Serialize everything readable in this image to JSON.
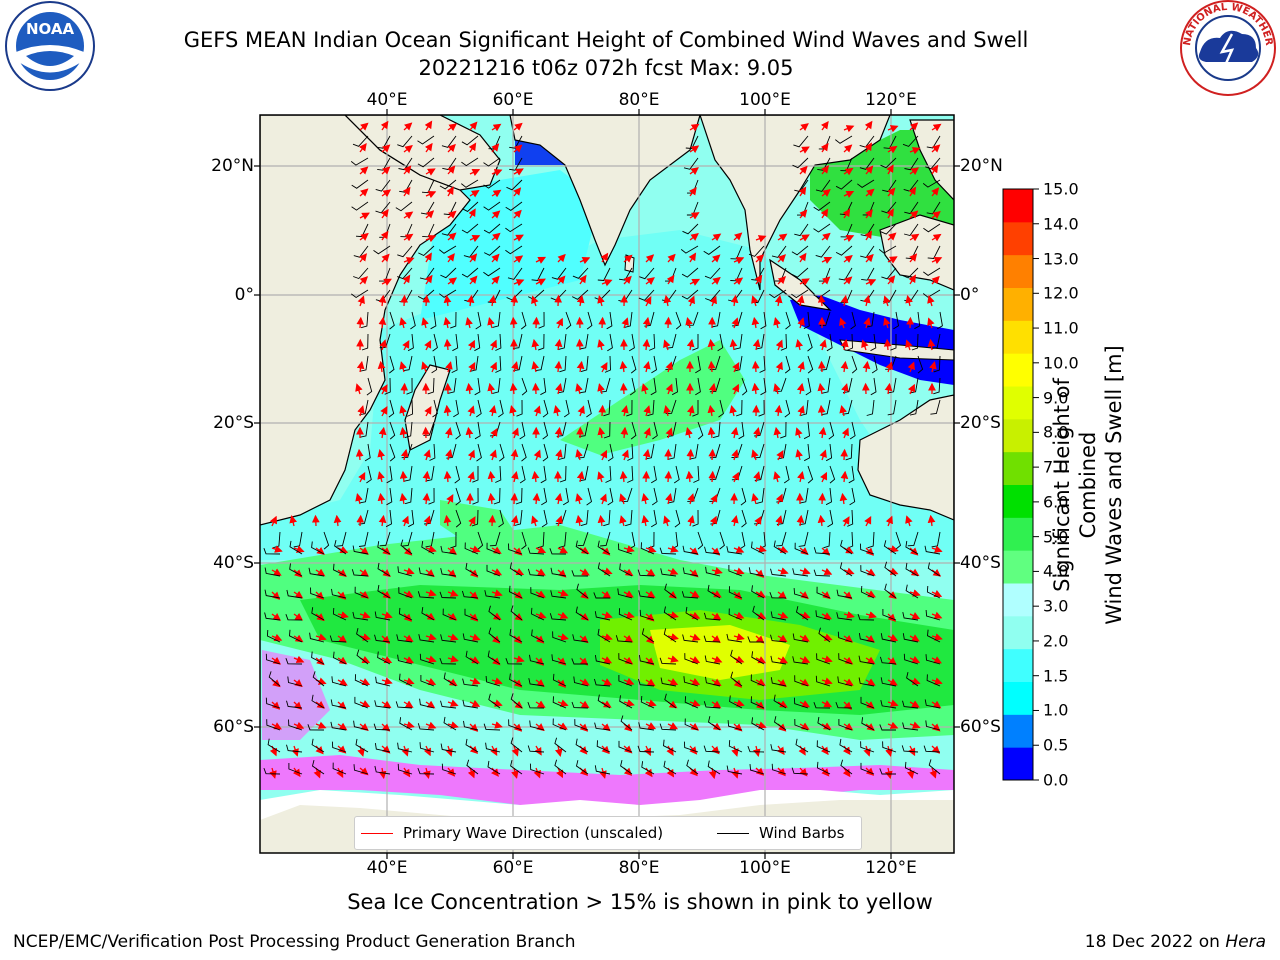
{
  "header": {
    "title_line1": "GEFS MEAN Indian Ocean Significant Height of Combined Wind Waves and Swell",
    "title_line2": "20221216 t06z 072h fcst   Max: 9.05"
  },
  "logos": {
    "noaa_text": "NOAA",
    "noaa_ring_text": "NATIONAL OCEANIC AND ATMOSPHERIC ADMINISTRATION · U.S. DEPARTMENT OF COMMERCE",
    "nws_ring_text": "NATIONAL WEATHER SERVICE"
  },
  "axes": {
    "lon_ticks": [
      "40°E",
      "60°E",
      "80°E",
      "100°E",
      "120°E"
    ],
    "lat_ticks_left": [
      "20°N",
      "0°",
      "20°S",
      "40°S",
      "60°S"
    ],
    "lat_ticks_right": [
      "20°N",
      "0°",
      "20°S",
      "40°S",
      "60°S"
    ]
  },
  "map": {
    "colors": {
      "land": "#efeedf",
      "ocean_low": "#00ffff",
      "ocean_mid": "#8ffff0",
      "green_mid": "#40ff70",
      "green_high": "#00e000",
      "yellow_green": "#c8ff00",
      "yellow": "#ffff00",
      "blue": "#0000ff",
      "dark_blue": "#0030e0",
      "ice_pink": "#ff40ff",
      "ice_white": "#ffffff",
      "arrow": "#ff0000",
      "barb": "#000000",
      "grid": "#b0b0b0"
    },
    "max_value": 9.05
  },
  "colorbar": {
    "title_line1": "Significant Height of Combined",
    "title_line2": "Wind Waves and Swell [m]",
    "levels": [
      "0.0",
      "0.5",
      "1.0",
      "1.5",
      "2.0",
      "3.0",
      "4.0",
      "5.0",
      "6.0",
      "7.0",
      "8.0",
      "9.0",
      "10.0",
      "11.0",
      "12.0",
      "13.0",
      "14.0",
      "15.0"
    ],
    "colors": [
      "#0000ff",
      "#0080ff",
      "#00ffff",
      "#40ffff",
      "#90fff0",
      "#b0ffff",
      "#60ff80",
      "#30f050",
      "#00e000",
      "#70e000",
      "#c8f000",
      "#e0ff00",
      "#ffff00",
      "#ffe000",
      "#ffb000",
      "#ff8000",
      "#ff4000",
      "#ff0000"
    ]
  },
  "legend": {
    "primary_wave": "Primary Wave Direction (unscaled)",
    "wind_barbs": "Wind Barbs"
  },
  "note": "Sea Ice Concentration > 15% is shown in pink to yellow",
  "footer": {
    "left": "NCEP/EMC/Verification Post Processing Product Generation Branch",
    "right_date": "18 Dec 2022 on ",
    "right_host": "Hera"
  }
}
